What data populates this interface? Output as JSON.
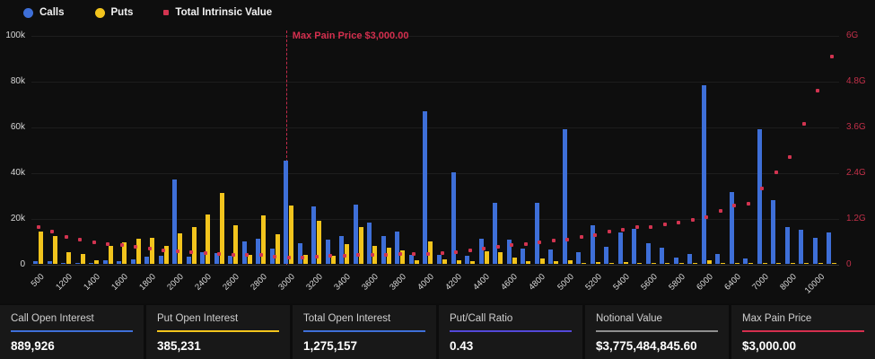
{
  "colors": {
    "background": "#0e0e0e",
    "calls_blue": "#3e6fd8",
    "puts_yellow": "#f2c41d",
    "intrinsic_red": "#d23450",
    "right_axis_red": "#c23049",
    "put_call_accent": "#5348d8",
    "notional_accent": "#8f8f8f"
  },
  "legend": {
    "items": [
      {
        "label": "Calls",
        "color": "#3e6fd8",
        "marker": "circle"
      },
      {
        "label": "Puts",
        "color": "#f2c41d",
        "marker": "circle"
      },
      {
        "label": "Total Intrinsic Value",
        "color": "#d23450",
        "marker": "square"
      }
    ]
  },
  "chart_data": {
    "type": "bar",
    "title": "",
    "grid": true,
    "legend_position": "top-left",
    "categories": [
      "500",
      "",
      "1200",
      "",
      "1400",
      "",
      "1600",
      "",
      "1800",
      "",
      "2000",
      "",
      "2400",
      "",
      "2600",
      "",
      "2800",
      "",
      "3000",
      "",
      "3200",
      "",
      "3400",
      "",
      "3600",
      "",
      "3800",
      "",
      "4000",
      "",
      "4200",
      "",
      "4400",
      "",
      "4600",
      "",
      "4800",
      "",
      "5000",
      "",
      "5200",
      "",
      "5400",
      "",
      "5600",
      "",
      "5800",
      "",
      "6000",
      "",
      "6400",
      "",
      "7000",
      "",
      "8000",
      "",
      "10000",
      ""
    ],
    "y_left": {
      "ticks": [
        "100k",
        "80k",
        "60k",
        "40k",
        "20k",
        "0"
      ],
      "lim": [
        0,
        100000
      ]
    },
    "y_right": {
      "ticks": [
        "6G",
        "4.8G",
        "3.6G",
        "2.4G",
        "1.2G",
        "0"
      ],
      "lim": [
        0,
        6
      ]
    },
    "series": [
      {
        "name": "Calls",
        "type": "bar",
        "axis": "left",
        "color": "#3e6fd8",
        "values": [
          1000,
          1000,
          500,
          500,
          300,
          1500,
          1000,
          2000,
          3000,
          3500,
          37000,
          3000,
          5000,
          4700,
          3500,
          10000,
          11000,
          6500,
          45000,
          9000,
          25000,
          10500,
          12000,
          26000,
          18000,
          12000,
          14000,
          4000,
          66500,
          4000,
          40000,
          3500,
          11000,
          26500,
          10500,
          6700,
          26700,
          6300,
          59000,
          5000,
          17000,
          7500,
          13700,
          15300,
          9000,
          7000,
          2700,
          4300,
          78000,
          4300,
          31400,
          2300,
          59000,
          27800,
          16000,
          14900,
          11400,
          13700
        ]
      },
      {
        "name": "Puts",
        "type": "bar",
        "axis": "left",
        "color": "#f2c41d",
        "values": [
          14000,
          12000,
          5000,
          4500,
          1500,
          8000,
          9500,
          11000,
          11500,
          8000,
          13500,
          16000,
          21500,
          31000,
          17000,
          4000,
          21000,
          13000,
          25500,
          4000,
          19000,
          3500,
          8500,
          16000,
          8000,
          7000,
          6000,
          1500,
          10000,
          2000,
          1500,
          1000,
          5500,
          5000,
          2700,
          1000,
          2400,
          1000,
          1700,
          500,
          800,
          500,
          800,
          500,
          500,
          400,
          300,
          300,
          1500,
          300,
          300,
          300,
          500,
          300,
          300,
          300,
          300,
          300
        ]
      },
      {
        "name": "Total Intrinsic Value",
        "type": "scatter",
        "axis": "right",
        "color": "#d23450",
        "values": [
          1.0,
          0.88,
          0.73,
          0.66,
          0.6,
          0.55,
          0.52,
          0.47,
          0.42,
          0.38,
          0.35,
          0.33,
          0.31,
          0.29,
          0.27,
          0.26,
          0.25,
          0.22,
          0.19,
          0.2,
          0.22,
          0.23,
          0.24,
          0.25,
          0.26,
          0.27,
          0.28,
          0.28,
          0.29,
          0.31,
          0.33,
          0.37,
          0.42,
          0.46,
          0.52,
          0.55,
          0.59,
          0.64,
          0.66,
          0.73,
          0.78,
          0.87,
          0.91,
          0.98,
          1.0,
          1.05,
          1.1,
          1.18,
          1.25,
          1.41,
          1.55,
          1.6,
          2.0,
          2.43,
          2.82,
          3.69,
          4.57,
          5.47
        ]
      }
    ],
    "annotation": {
      "text": "Max Pain Price $3,000.00",
      "category_index": 18,
      "value_label": "3000"
    }
  },
  "stats": [
    {
      "label": "Call Open Interest",
      "value": "889,926",
      "accent_color": "#3e6fd8"
    },
    {
      "label": "Put Open Interest",
      "value": "385,231",
      "accent_color": "#f2c41d"
    },
    {
      "label": "Total Open Interest",
      "value": "1,275,157",
      "accent_color": "#3e6fd8"
    },
    {
      "label": "Put/Call Ratio",
      "value": "0.43",
      "accent_color": "#5348d8"
    },
    {
      "label": "Notional Value",
      "value": "$3,775,484,845.60",
      "accent_color": "#8f8f8f"
    },
    {
      "label": "Max Pain Price",
      "value": "$3,000.00",
      "accent_color": "#d42f4e"
    }
  ]
}
